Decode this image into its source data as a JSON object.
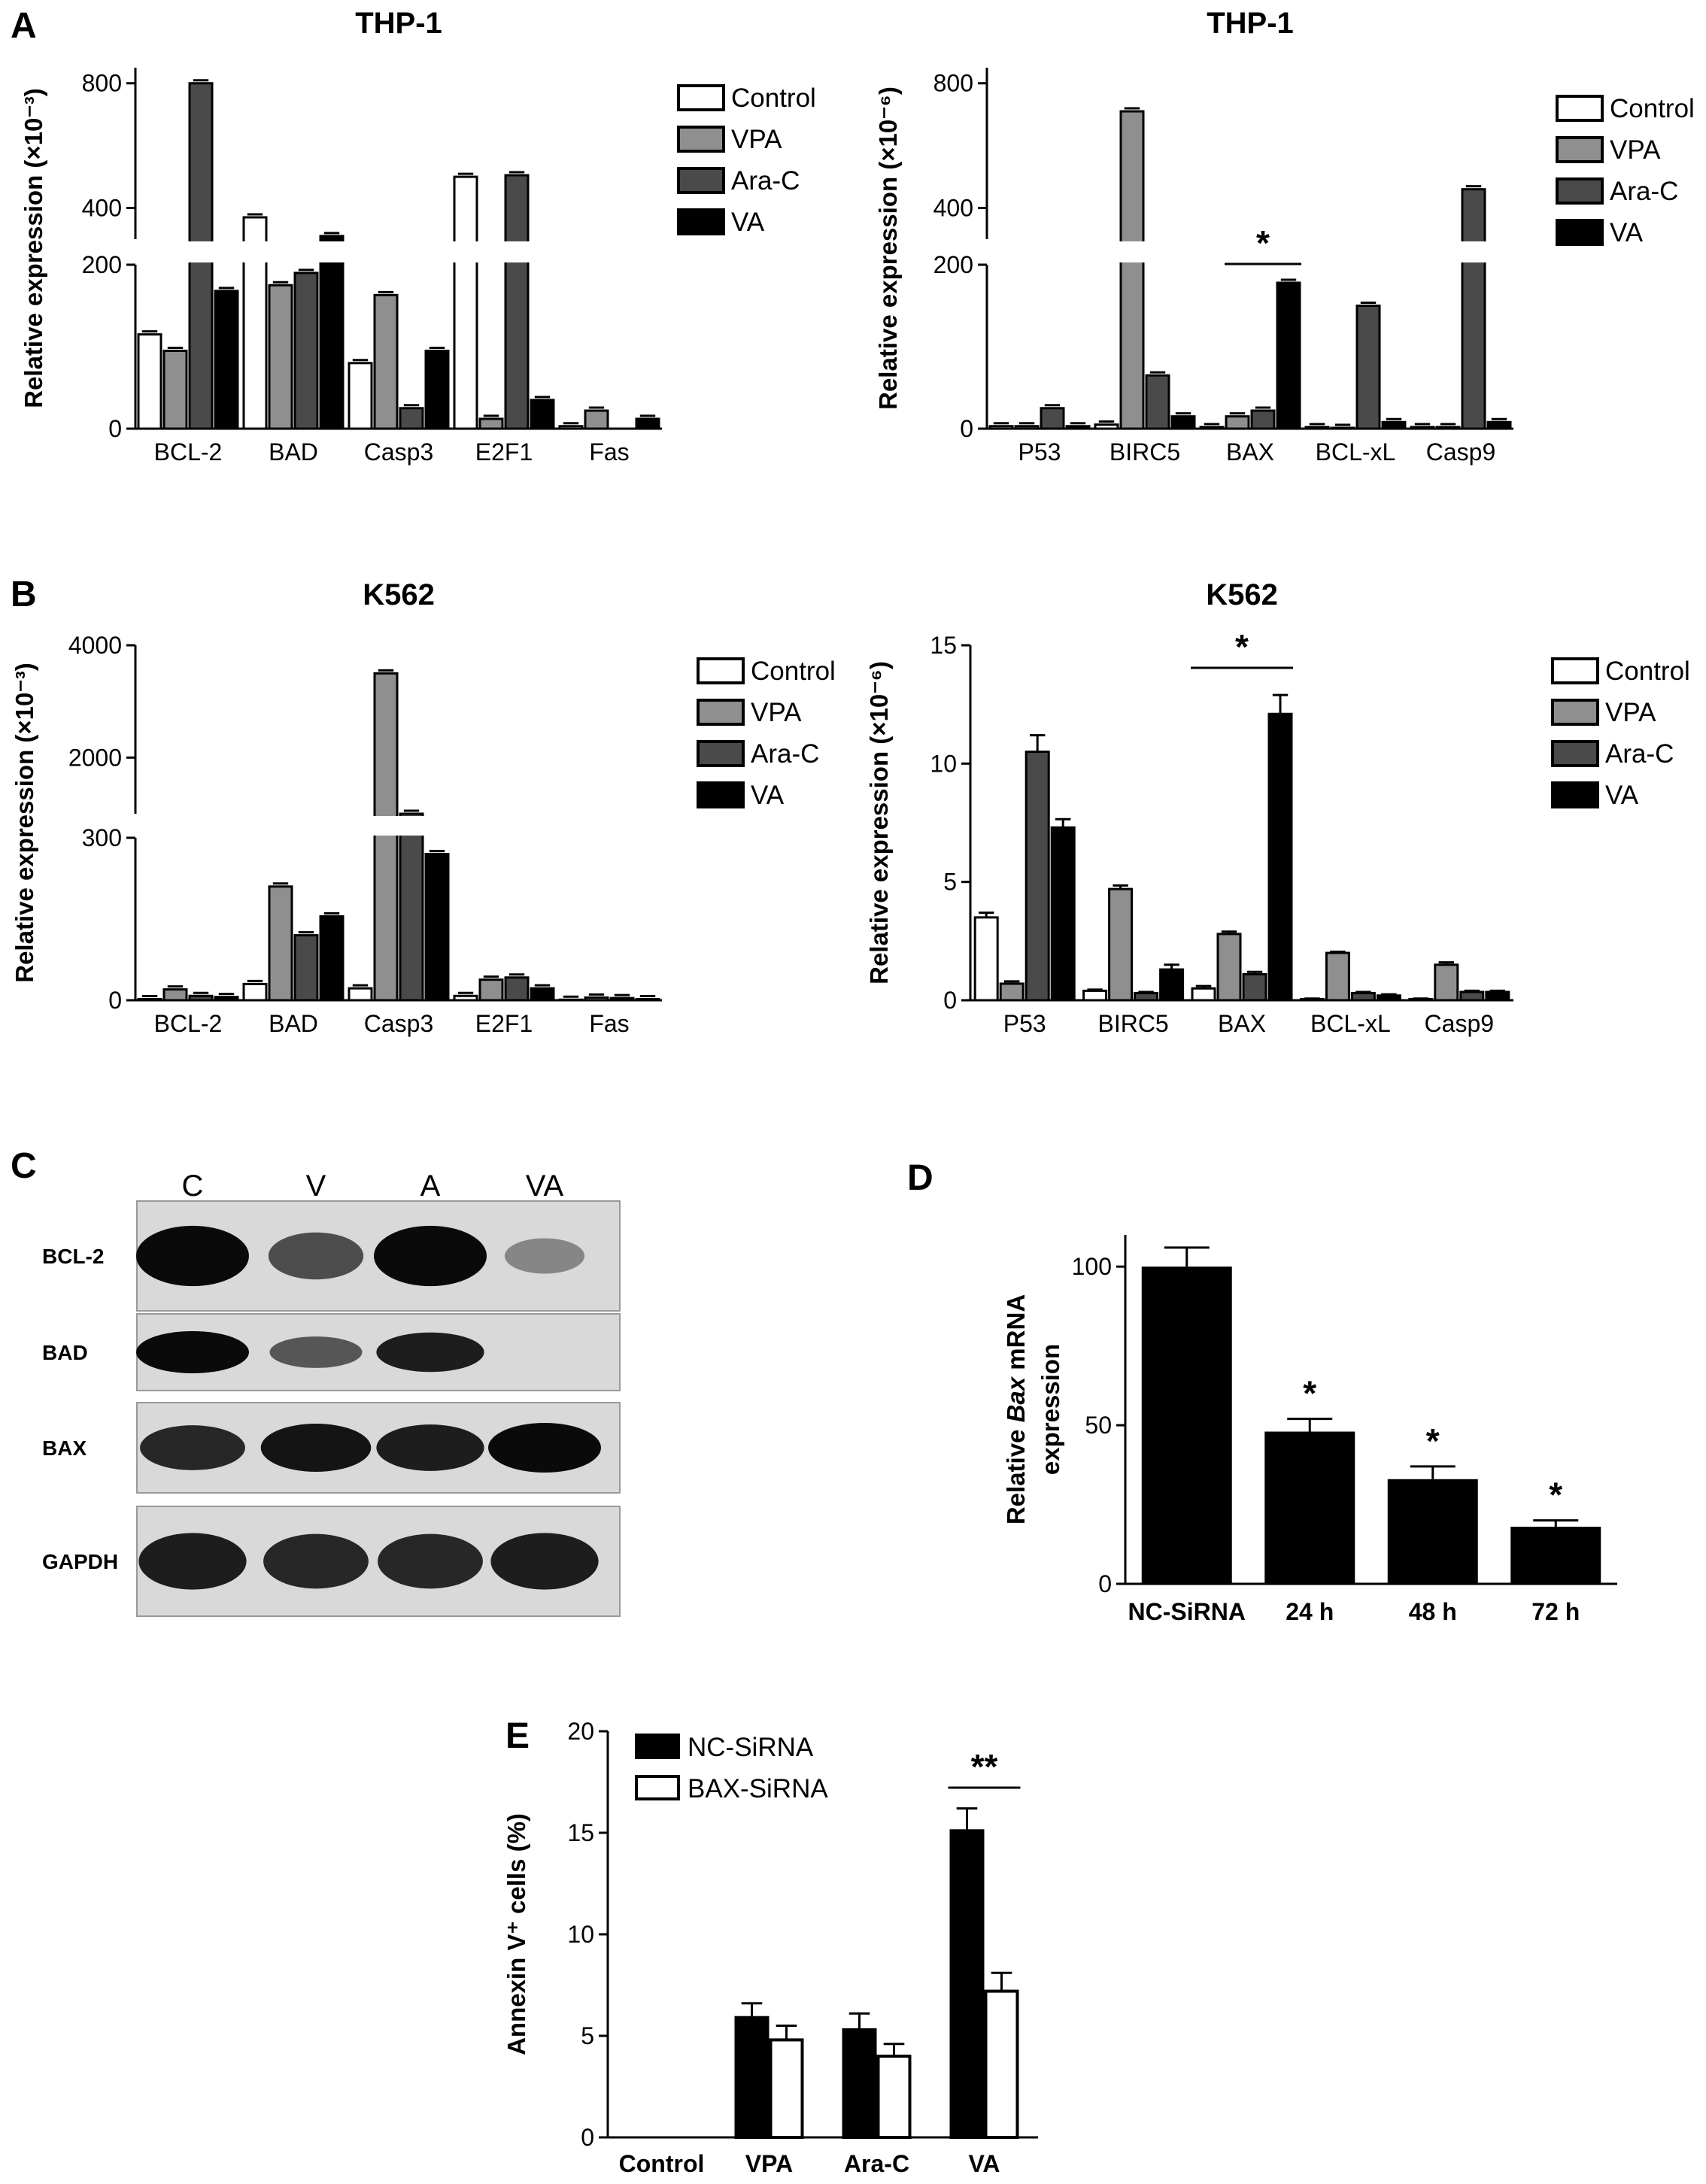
{
  "panels": {
    "A": "A",
    "B": "B",
    "C": "C",
    "D": "D",
    "E": "E"
  },
  "colors": {
    "Control": "#ffffff",
    "VPA": "#8f8f8f",
    "Ara-C": "#4a4a4a",
    "VA": "#000000"
  },
  "chart_data": [
    {
      "id": "A-left",
      "type": "bar",
      "title": "THP-1",
      "ylabel": "Relative expression (×10⁻³)",
      "categories": [
        "BCL-2",
        "BAD",
        "Casp3",
        "E2F1",
        "Fas"
      ],
      "series": [
        {
          "name": "Control",
          "values": [
            115,
            370,
            80,
            500,
            3
          ]
        },
        {
          "name": "VPA",
          "values": [
            95,
            175,
            163,
            12,
            22
          ]
        },
        {
          "name": "Ara-C",
          "values": [
            800,
            190,
            25,
            505,
            0
          ]
        },
        {
          "name": "VA",
          "values": [
            168,
            310,
            95,
            35,
            12
          ]
        }
      ],
      "axis_break": {
        "lower": [
          0,
          200
        ],
        "upper": [
          300,
          850
        ]
      },
      "yticks": [
        0,
        200,
        400,
        800
      ],
      "annotations": []
    },
    {
      "id": "A-right",
      "type": "bar",
      "title": "THP-1",
      "ylabel": "Relative expression (×10⁻⁶)",
      "categories": [
        "P53",
        "BIRC5",
        "BAX",
        "BCL-xL",
        "Casp9"
      ],
      "series": [
        {
          "name": "Control",
          "values": [
            3,
            5,
            2,
            2,
            2
          ]
        },
        {
          "name": "VPA",
          "values": [
            3,
            710,
            15,
            1,
            2
          ]
        },
        {
          "name": "Ara-C",
          "values": [
            25,
            65,
            22,
            150,
            460
          ]
        },
        {
          "name": "VA",
          "values": [
            3,
            15,
            178,
            8,
            8
          ]
        }
      ],
      "axis_break": {
        "lower": [
          0,
          200
        ],
        "upper": [
          300,
          850
        ]
      },
      "yticks": [
        0,
        200,
        400,
        800
      ],
      "annotations": [
        {
          "text": "*",
          "category": "BAX"
        }
      ]
    },
    {
      "id": "B-left",
      "type": "bar",
      "title": "K562",
      "ylabel": "Relative expression (×10⁻³)",
      "categories": [
        "BCL-2",
        "BAD",
        "Casp3",
        "E2F1",
        "Fas"
      ],
      "series": [
        {
          "name": "Control",
          "values": [
            2,
            30,
            22,
            8,
            1
          ]
        },
        {
          "name": "VPA",
          "values": [
            20,
            210,
            3500,
            38,
            5
          ]
        },
        {
          "name": "Ara-C",
          "values": [
            8,
            120,
            1000,
            42,
            4
          ]
        },
        {
          "name": "VA",
          "values": [
            6,
            155,
            270,
            22,
            2
          ]
        }
      ],
      "axis_break": {
        "lower": [
          0,
          300
        ],
        "upper": [
          1000,
          4000
        ]
      },
      "yticks": [
        0,
        300,
        2000,
        4000
      ],
      "annotations": []
    },
    {
      "id": "B-right",
      "type": "bar",
      "title": "K562",
      "ylabel": "Relative expression (×10⁻⁶)",
      "categories": [
        "P53",
        "BIRC5",
        "BAX",
        "BCL-xL",
        "Casp9"
      ],
      "series": [
        {
          "name": "Control",
          "values": [
            3.5,
            0.4,
            0.5,
            0.05,
            0.05
          ]
        },
        {
          "name": "VPA",
          "values": [
            0.7,
            4.7,
            2.8,
            2.0,
            1.5
          ]
        },
        {
          "name": "Ara-C",
          "values": [
            10.5,
            0.3,
            1.1,
            0.3,
            0.35
          ]
        },
        {
          "name": "VA",
          "values": [
            7.3,
            1.3,
            12.1,
            0.2,
            0.35
          ]
        }
      ],
      "errors": [
        [
          0.2,
          0.05,
          0.1,
          0.02,
          0.02
        ],
        [
          0.1,
          0.15,
          0.1,
          0.05,
          0.1
        ],
        [
          0.7,
          0.05,
          0.1,
          0.05,
          0.05
        ],
        [
          0.35,
          0.2,
          0.8,
          0.05,
          0.05
        ]
      ],
      "ylim": [
        0,
        15
      ],
      "yticks": [
        0,
        5,
        10,
        15
      ],
      "annotations": [
        {
          "text": "*",
          "category": "BAX"
        }
      ]
    },
    {
      "id": "D",
      "type": "bar",
      "ylabel_parts": [
        "Relative ",
        "Bax",
        " mRNA"
      ],
      "ylabel_line2": "expression",
      "categories": [
        "NC-SiRNA",
        "24 h",
        "48 h",
        "72 h"
      ],
      "values": [
        100,
        48,
        33,
        18
      ],
      "errors": [
        6,
        4,
        4,
        2
      ],
      "ylim": [
        0,
        110
      ],
      "yticks": [
        0,
        50,
        100
      ],
      "annotations": [
        "",
        "*",
        "*",
        "*"
      ]
    },
    {
      "id": "E",
      "type": "bar",
      "ylabel": "Annexin V⁺ cells (%)",
      "categories": [
        "Control",
        "VPA",
        "Ara-C",
        "VA"
      ],
      "series": [
        {
          "name": "NC-SiRNA",
          "values": [
            0,
            5.9,
            5.3,
            15.1
          ]
        },
        {
          "name": "BAX-SiRNA",
          "values": [
            0,
            4.8,
            4.0,
            7.2
          ]
        }
      ],
      "errors": [
        [
          0,
          0.7,
          0.8,
          1.1
        ],
        [
          0,
          0.7,
          0.6,
          0.9
        ]
      ],
      "ylim": [
        0,
        20
      ],
      "yticks": [
        0,
        5,
        10,
        15,
        20
      ],
      "annotations": [
        {
          "text": "**",
          "category": "VA"
        }
      ]
    }
  ],
  "blot": {
    "lanes": [
      "C",
      "V",
      "A",
      "VA"
    ],
    "rows": [
      {
        "label": "BCL-2",
        "intensity": [
          1.0,
          0.65,
          1.0,
          0.35
        ]
      },
      {
        "label": "BAD",
        "intensity": [
          1.0,
          0.6,
          0.9,
          0.0
        ]
      },
      {
        "label": "BAX",
        "intensity": [
          0.85,
          0.95,
          0.9,
          1.0
        ]
      },
      {
        "label": "GAPDH",
        "intensity": [
          0.9,
          0.85,
          0.85,
          0.9
        ]
      }
    ]
  }
}
